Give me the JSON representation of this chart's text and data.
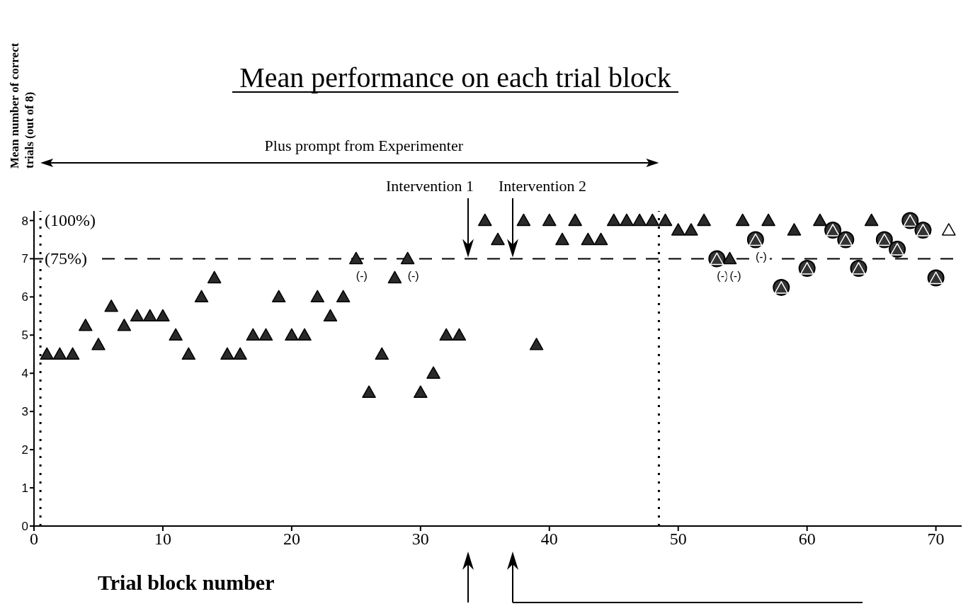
{
  "chart_data": {
    "type": "scatter",
    "title": "Mean performance on each trial block",
    "xlabel": "Trial block number",
    "ylabel": "Mean number of correct trials (out of 8)",
    "xlim": [
      0,
      72
    ],
    "xticks": [
      0,
      10,
      20,
      30,
      40,
      50,
      60,
      70
    ],
    "ylim": [
      0,
      8.25
    ],
    "yticks": [
      0,
      1,
      2,
      3,
      4,
      5,
      6,
      7,
      8
    ],
    "marker": "triangle",
    "series": [
      {
        "color": "#2a2a2a",
        "x": [
          1,
          2,
          3,
          4,
          5,
          6,
          7,
          8,
          9,
          10,
          11,
          12,
          13,
          14,
          15,
          16,
          17,
          18,
          19,
          20,
          21,
          22,
          23,
          24,
          25,
          26,
          27,
          28,
          29,
          30,
          31,
          32,
          33,
          35,
          36,
          38,
          39,
          40,
          41,
          42,
          43,
          44,
          45,
          46,
          47,
          48,
          49,
          50,
          51,
          52,
          54,
          55,
          57,
          59,
          61,
          65
        ],
        "values": [
          4.5,
          4.5,
          4.5,
          5.25,
          4.75,
          5.75,
          5.25,
          5.5,
          5.5,
          5.5,
          5,
          4.5,
          6,
          6.5,
          4.5,
          4.5,
          5,
          5,
          6,
          5,
          5,
          6,
          5.5,
          6,
          7,
          3.5,
          4.5,
          6.5,
          7,
          3.5,
          4,
          5,
          5,
          8,
          7.5,
          8,
          4.75,
          8,
          7.5,
          8,
          7.5,
          7.5,
          8,
          8,
          8,
          8,
          8,
          7.75,
          7.75,
          8,
          7,
          8,
          8,
          7.75,
          8,
          8
        ]
      },
      {
        "color": "#333333",
        "marker": "circle",
        "x": [
          53,
          56,
          58,
          60,
          62,
          63,
          64,
          66,
          67,
          68,
          69,
          70
        ],
        "values": [
          7,
          7.5,
          6.25,
          6.75,
          7.75,
          7.5,
          6.75,
          7.5,
          7.25,
          8,
          7.75,
          6.5
        ]
      },
      {
        "color": "#ffffff",
        "x": [
          71
        ],
        "values": [
          7.75
        ]
      }
    ],
    "ref_lines": [
      {
        "axis": "y",
        "value": 7,
        "line_style": "dashed",
        "color": "#000000"
      },
      {
        "axis": "x",
        "value": 0.5,
        "line_style": "dotted",
        "color": "#000000"
      },
      {
        "axis": "x",
        "value": 48.5,
        "line_style": "dotted",
        "color": "#000000"
      }
    ],
    "annotations": [
      "Plus prompt from Experimenter",
      "Intervention 1",
      "Intervention 2",
      {
        "text": "(100%)",
        "x": 0.5,
        "y": 8
      },
      {
        "text": "(75%)",
        "x": 0.5,
        "y": 7
      },
      {
        "text": "(-)",
        "x": 25,
        "y": 7
      },
      {
        "text": "(-)",
        "x": 29,
        "y": 7
      },
      {
        "text": "(-)",
        "x": 53,
        "y": 7
      },
      {
        "text": "(-)",
        "x": 54,
        "y": 7
      },
      {
        "text": "(-)",
        "x": 56,
        "y": 7.5
      }
    ]
  }
}
